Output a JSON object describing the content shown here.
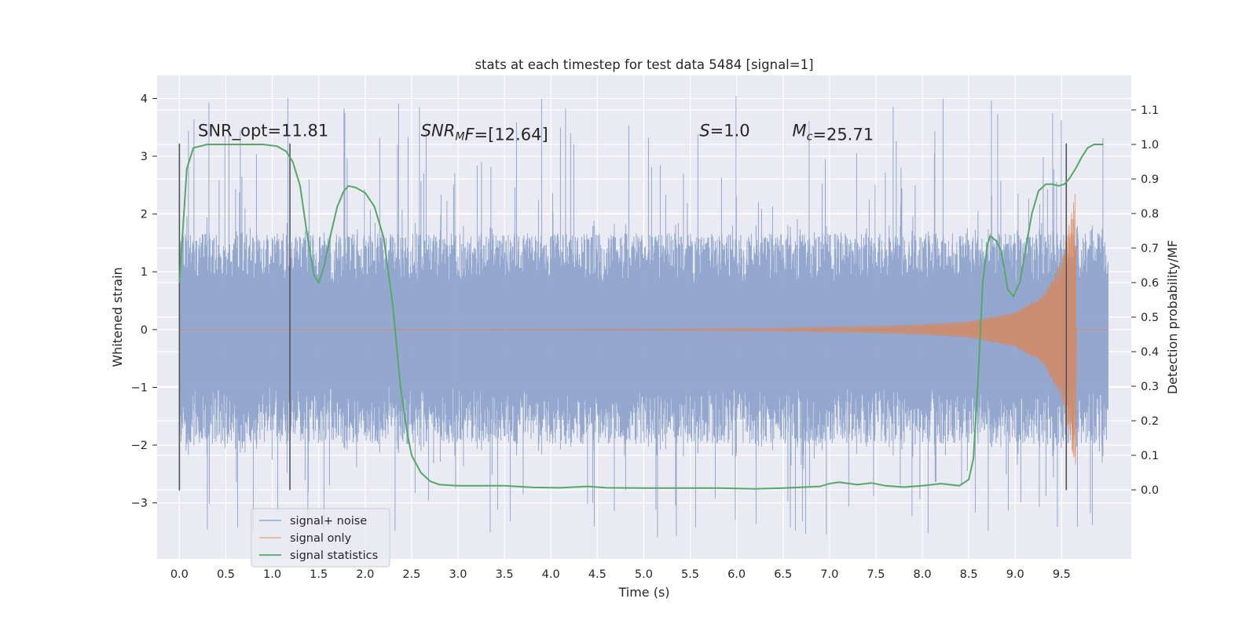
{
  "chart_data": {
    "type": "line",
    "title": "stats at each timestep for test data 5484 [signal=1]",
    "xlabel": "Time (s)",
    "ylabel": "Whitened strain",
    "y2label": "Detection probability/MF",
    "xlim": [
      -0.24,
      10.25
    ],
    "ylim": [
      -3.97,
      4.4
    ],
    "y2lim": [
      -0.2,
      1.2
    ],
    "xticks": [
      "0.0",
      "0.5",
      "1.0",
      "1.5",
      "2.0",
      "2.5",
      "3.0",
      "3.5",
      "4.0",
      "4.5",
      "5.0",
      "5.5",
      "6.0",
      "6.5",
      "7.0",
      "7.5",
      "8.0",
      "8.5",
      "9.0",
      "9.5"
    ],
    "yticks": [
      "−3",
      "−2",
      "−1",
      "0",
      "1",
      "2",
      "3",
      "4"
    ],
    "y2ticks": [
      "0.0",
      "0.1",
      "0.2",
      "0.3",
      "0.4",
      "0.5",
      "0.6",
      "0.7",
      "0.8",
      "0.9",
      "1.0",
      "1.1"
    ],
    "grid": true,
    "legend_position": "lower-left",
    "colors": {
      "background": "#eaeaf2",
      "grid": "#ffffff",
      "noise": "#8fa4cc",
      "signal": "#dd8452",
      "statistics": "#55a868",
      "markers": "#555555"
    },
    "annotations": [
      {
        "kind": "plain",
        "text": "SNR_opt=11.81",
        "x": 0.2,
        "y": 3.35
      },
      {
        "kind": "math",
        "base": "SNR",
        "sub": "M",
        "rest": "F=[12.64]",
        "x": 2.6,
        "y": 3.35
      },
      {
        "kind": "math",
        "base": "S",
        "sub": "",
        "rest": "=1.0",
        "x": 5.6,
        "y": 3.35
      },
      {
        "kind": "math",
        "base": "M",
        "sub": "c",
        "rest": "=25.71",
        "x": 6.6,
        "y": 3.35
      }
    ],
    "vertical_markers": [
      {
        "x": 0.0,
        "y_from": -2.78,
        "y_to": 3.22
      },
      {
        "x": 1.19,
        "y_from": -2.78,
        "y_to": 3.22
      },
      {
        "x": 9.55,
        "y_from": -2.78,
        "y_to": 3.22
      }
    ],
    "series": [
      {
        "name": "signal+ noise",
        "kind": "noise",
        "x_range": [
          0.0,
          10.0
        ],
        "core_range": [
          -1.8,
          1.45
        ],
        "peak_range": [
          -3.6,
          4.05
        ]
      },
      {
        "name": "signal only",
        "kind": "chirp",
        "x_range": [
          0.0,
          10.0
        ],
        "envelope": {
          "x": [
            0,
            5.0,
            6.5,
            7.5,
            8.0,
            8.5,
            9.0,
            9.3,
            9.5,
            9.6,
            9.65,
            9.66,
            10.0
          ],
          "amp": [
            0.0,
            0.01,
            0.03,
            0.06,
            0.09,
            0.14,
            0.3,
            0.6,
            1.2,
            2.0,
            2.4,
            0.0,
            0.0
          ]
        }
      },
      {
        "name": "signal statistics",
        "kind": "line",
        "axis": "right",
        "points": [
          [
            0.0,
            0.6
          ],
          [
            0.08,
            0.93
          ],
          [
            0.15,
            0.99
          ],
          [
            0.3,
            1.0
          ],
          [
            0.6,
            1.0
          ],
          [
            0.9,
            1.0
          ],
          [
            1.05,
            0.995
          ],
          [
            1.15,
            0.98
          ],
          [
            1.22,
            0.95
          ],
          [
            1.3,
            0.88
          ],
          [
            1.38,
            0.73
          ],
          [
            1.45,
            0.62
          ],
          [
            1.5,
            0.6
          ],
          [
            1.56,
            0.65
          ],
          [
            1.63,
            0.74
          ],
          [
            1.7,
            0.82
          ],
          [
            1.77,
            0.865
          ],
          [
            1.82,
            0.88
          ],
          [
            1.9,
            0.875
          ],
          [
            2.0,
            0.86
          ],
          [
            2.1,
            0.82
          ],
          [
            2.2,
            0.73
          ],
          [
            2.3,
            0.53
          ],
          [
            2.38,
            0.3
          ],
          [
            2.45,
            0.17
          ],
          [
            2.5,
            0.1
          ],
          [
            2.6,
            0.05
          ],
          [
            2.7,
            0.025
          ],
          [
            2.8,
            0.015
          ],
          [
            3.0,
            0.012
          ],
          [
            3.5,
            0.012
          ],
          [
            3.8,
            0.007
          ],
          [
            4.1,
            0.006
          ],
          [
            4.4,
            0.01
          ],
          [
            4.6,
            0.006
          ],
          [
            5.0,
            0.005
          ],
          [
            5.5,
            0.005
          ],
          [
            5.8,
            0.005
          ],
          [
            6.2,
            0.003
          ],
          [
            6.5,
            0.005
          ],
          [
            6.9,
            0.01
          ],
          [
            7.0,
            0.018
          ],
          [
            7.1,
            0.022
          ],
          [
            7.3,
            0.015
          ],
          [
            7.45,
            0.02
          ],
          [
            7.6,
            0.012
          ],
          [
            7.8,
            0.008
          ],
          [
            8.0,
            0.012
          ],
          [
            8.2,
            0.018
          ],
          [
            8.4,
            0.012
          ],
          [
            8.5,
            0.03
          ],
          [
            8.55,
            0.09
          ],
          [
            8.6,
            0.32
          ],
          [
            8.65,
            0.6
          ],
          [
            8.7,
            0.71
          ],
          [
            8.73,
            0.735
          ],
          [
            8.8,
            0.72
          ],
          [
            8.85,
            0.69
          ],
          [
            8.92,
            0.58
          ],
          [
            8.98,
            0.56
          ],
          [
            9.05,
            0.6
          ],
          [
            9.1,
            0.68
          ],
          [
            9.18,
            0.8
          ],
          [
            9.25,
            0.865
          ],
          [
            9.33,
            0.885
          ],
          [
            9.4,
            0.885
          ],
          [
            9.47,
            0.88
          ],
          [
            9.53,
            0.885
          ],
          [
            9.58,
            0.9
          ],
          [
            9.65,
            0.93
          ],
          [
            9.72,
            0.965
          ],
          [
            9.78,
            0.99
          ],
          [
            9.85,
            1.0
          ],
          [
            9.95,
            1.0
          ]
        ]
      }
    ]
  }
}
